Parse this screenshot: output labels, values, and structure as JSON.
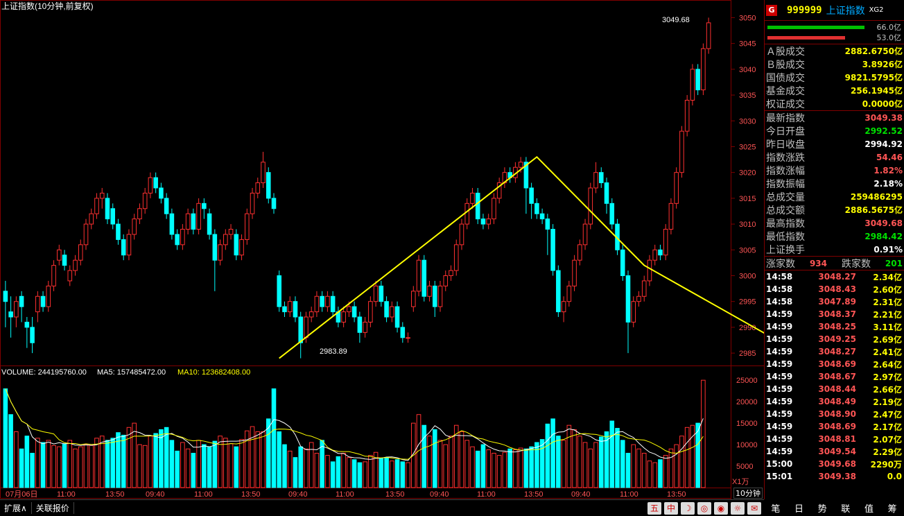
{
  "chart_title": "上证指数(10分钟,前复权)",
  "volume_line": {
    "vol": "VOLUME: 244195760.00",
    "ma5": "MA5: 157485472.00",
    "ma10": "MA10: 123682408.00"
  },
  "annotations": {
    "high": "3049.68",
    "low": "2983.89"
  },
  "y_ticks": [
    "3050",
    "3045",
    "3040",
    "3035",
    "3030",
    "3025",
    "3020",
    "3015",
    "3010",
    "3005",
    "3000",
    "2995",
    "2990",
    "2985"
  ],
  "vol_ticks": [
    "25000",
    "20000",
    "15000",
    "10000",
    "5000"
  ],
  "vol_unit": "X1万",
  "x_ticks": [
    "07月06日",
    "11:00",
    "13:50",
    "09:40",
    "11:00",
    "13:50",
    "09:40",
    "11:00",
    "13:50",
    "09:40",
    "11:00",
    "13:50",
    "09:40",
    "11:00",
    "13:50"
  ],
  "period_button": "10分钟",
  "bottom": {
    "expand": "扩展∧",
    "related": "关联报价",
    "icons": [
      "五",
      "中",
      "☽",
      "◎",
      "◉",
      "☼",
      "✉"
    ]
  },
  "right_tabs": [
    "笔",
    "日",
    "势",
    "联",
    "值",
    "筹"
  ],
  "quote": {
    "badge": "G",
    "code": "999999",
    "name": "上证指数",
    "tag": "XG2",
    "bar_labels": [
      "66.0亿",
      "53.0亿"
    ],
    "rows1": [
      {
        "k": "Ａ股成交",
        "v": "2882.6750亿"
      },
      {
        "k": "Ｂ股成交",
        "v": "3.8926亿"
      },
      {
        "k": "国债成交",
        "v": "9821.5795亿"
      },
      {
        "k": "基金成交",
        "v": "256.1945亿"
      },
      {
        "k": "权证成交",
        "v": "0.0000亿"
      }
    ],
    "rows2": [
      {
        "k": "最新指数",
        "v": "3049.38",
        "c": "#ff5555"
      },
      {
        "k": "今日开盘",
        "v": "2992.52",
        "c": "#00e000"
      },
      {
        "k": "昨日收盘",
        "v": "2994.92",
        "c": "#ffffff"
      },
      {
        "k": "指数涨跌",
        "v": "54.46",
        "c": "#ff5555"
      },
      {
        "k": "指数涨幅",
        "v": "1.82%",
        "c": "#ff5555"
      },
      {
        "k": "指数振幅",
        "v": "2.18%",
        "c": "#ffffff"
      },
      {
        "k": "总成交量",
        "v": "259486295",
        "c": "#ffff00"
      },
      {
        "k": "总成交额",
        "v": "2886.5675亿",
        "c": "#ffff00"
      },
      {
        "k": "最高指数",
        "v": "3049.68",
        "c": "#ff5555"
      },
      {
        "k": "最低指数",
        "v": "2984.42",
        "c": "#00e000"
      },
      {
        "k": "上证换手",
        "v": "0.91%",
        "c": "#ffffff"
      }
    ],
    "updown": {
      "up_label": "涨家数",
      "up": "934",
      "down_label": "跌家数",
      "down": "201"
    },
    "ticks": [
      [
        "14:58",
        "3048.27",
        "2.34亿"
      ],
      [
        "14:58",
        "3048.43",
        "2.60亿"
      ],
      [
        "14:58",
        "3047.89",
        "2.31亿"
      ],
      [
        "14:59",
        "3048.37",
        "2.21亿"
      ],
      [
        "14:59",
        "3048.25",
        "3.11亿"
      ],
      [
        "14:59",
        "3049.25",
        "2.69亿"
      ],
      [
        "14:59",
        "3048.27",
        "2.41亿"
      ],
      [
        "14:59",
        "3048.69",
        "2.64亿"
      ],
      [
        "14:59",
        "3048.67",
        "2.97亿"
      ],
      [
        "14:59",
        "3048.44",
        "2.66亿"
      ],
      [
        "14:59",
        "3048.49",
        "2.19亿"
      ],
      [
        "14:59",
        "3048.90",
        "2.47亿"
      ],
      [
        "14:59",
        "3048.69",
        "2.17亿"
      ],
      [
        "14:59",
        "3048.81",
        "2.07亿"
      ],
      [
        "14:59",
        "3049.54",
        "2.29亿"
      ],
      [
        "15:00",
        "3049.68",
        "2290万"
      ],
      [
        "15:01",
        "3049.38",
        "0.0"
      ]
    ]
  },
  "chart_data": {
    "type": "candlestick",
    "ylim": [
      2983,
      3051
    ],
    "volume_ylim": [
      0,
      26000
    ],
    "candles": [
      [
        2997,
        2995,
        2999,
        2990
      ],
      [
        2993,
        2992,
        2996,
        2988
      ],
      [
        2992,
        2995,
        2996,
        2990
      ],
      [
        2996,
        2994,
        2997,
        2991
      ],
      [
        2991,
        2990,
        2992,
        2986
      ],
      [
        2990,
        2987,
        2992,
        2985
      ],
      [
        2993,
        2996,
        2997,
        2991
      ],
      [
        2996,
        2994,
        2997,
        2993
      ],
      [
        2994,
        2998,
        2999,
        2993
      ],
      [
        2998,
        3002,
        3003,
        2997
      ],
      [
        3003,
        3005,
        3006,
        3002
      ],
      [
        3004,
        3002,
        3005,
        3001
      ],
      [
        2999,
        3001,
        3002,
        2998
      ],
      [
        3001,
        3003,
        3004,
        3000
      ],
      [
        3003,
        3006,
        3007,
        3002
      ],
      [
        3006,
        3010,
        3011,
        3005
      ],
      [
        3010,
        3012,
        3013,
        3009
      ],
      [
        3012,
        3015,
        3016,
        3011
      ],
      [
        3015,
        3016,
        3017,
        3013
      ],
      [
        3015,
        3011,
        3016,
        3010
      ],
      [
        3013,
        3010,
        3014,
        3009
      ],
      [
        3010,
        3007,
        3011,
        3006
      ],
      [
        3007,
        3004,
        3008,
        3003
      ],
      [
        3004,
        3008,
        3009,
        3003
      ],
      [
        3008,
        3011,
        3012,
        3007
      ],
      [
        3011,
        3013,
        3014,
        3010
      ],
      [
        3013,
        3016,
        3017,
        3012
      ],
      [
        3016,
        3019,
        3020,
        3015
      ],
      [
        3019,
        3017,
        3020,
        3016
      ],
      [
        3017,
        3015,
        3018,
        3014
      ],
      [
        3015,
        3012,
        3016,
        3011
      ],
      [
        3012,
        3008,
        3013,
        3007
      ],
      [
        3008,
        3006,
        3009,
        3005
      ],
      [
        3006,
        3009,
        3010,
        3005
      ],
      [
        3009,
        3012,
        3013,
        3008
      ],
      [
        3012,
        3009,
        3013,
        3008
      ],
      [
        3009,
        3014,
        3015,
        3008
      ],
      [
        3014,
        3013,
        3015,
        3011
      ],
      [
        3012,
        3008,
        3013,
        3007
      ],
      [
        3008,
        3003,
        3009,
        2997
      ],
      [
        3003,
        3006,
        3007,
        3002
      ],
      [
        3006,
        3008,
        3009,
        3005
      ],
      [
        3008,
        3009,
        3010,
        3007
      ],
      [
        3008,
        3004,
        3009,
        3003
      ],
      [
        3004,
        3007,
        3008,
        3003
      ],
      [
        3007,
        3012,
        3013,
        3006
      ],
      [
        3012,
        3016,
        3017,
        3011
      ],
      [
        3016,
        3018,
        3019,
        3015
      ],
      [
        3018,
        3022,
        3024,
        3017
      ],
      [
        3020,
        3015,
        3021,
        3014
      ],
      [
        3015,
        3013,
        3016,
        3012
      ],
      [
        3000,
        2994,
        3001,
        2993
      ],
      [
        2994,
        2993,
        2995,
        2992
      ],
      [
        2993,
        2995,
        2996,
        2992
      ],
      [
        2995,
        2992,
        2996,
        2991
      ],
      [
        2992,
        2987,
        2993,
        2984
      ],
      [
        2988,
        2992,
        2993,
        2987
      ],
      [
        2992,
        2993,
        2994,
        2991
      ],
      [
        2993,
        2996,
        2997,
        2992
      ],
      [
        2996,
        2994,
        2997,
        2993
      ],
      [
        2994,
        2996,
        2997,
        2993
      ],
      [
        2996,
        2993,
        2997,
        2992
      ],
      [
        2993,
        2991,
        2994,
        2990
      ],
      [
        2991,
        2993,
        2994,
        2990
      ],
      [
        2993,
        2994,
        2995,
        2992
      ],
      [
        2994,
        2992,
        2995,
        2991
      ],
      [
        2992,
        2989,
        2993,
        2987
      ],
      [
        2989,
        2991,
        2992,
        2988
      ],
      [
        2991,
        2995,
        2996,
        2990
      ],
      [
        2995,
        2998,
        2999,
        2994
      ],
      [
        2998,
        2995,
        2999,
        2994
      ],
      [
        2995,
        2992,
        2996,
        2991
      ],
      [
        2992,
        2994,
        2995,
        2991
      ],
      [
        2994,
        2990,
        2995,
        2989
      ],
      [
        2990,
        2988,
        2991,
        2987
      ],
      [
        2988,
        2988,
        2989,
        2987
      ],
      [
        2994,
        2997,
        2998,
        2993
      ],
      [
        2997,
        3003,
        3004,
        2996
      ],
      [
        3003,
        2996,
        3004,
        2995
      ],
      [
        2996,
        2998,
        2999,
        2995
      ],
      [
        2998,
        2994,
        2999,
        2992
      ],
      [
        2994,
        2998,
        2999,
        2993
      ],
      [
        2998,
        3000,
        3001,
        2997
      ],
      [
        3000,
        3001,
        3002,
        2999
      ],
      [
        3001,
        3006,
        3007,
        3000
      ],
      [
        3006,
        3010,
        3011,
        3005
      ],
      [
        3010,
        3014,
        3015,
        3009
      ],
      [
        3014,
        3016,
        3017,
        3013
      ],
      [
        3016,
        3011,
        3017,
        3010
      ],
      [
        3011,
        3010,
        3012,
        3009
      ],
      [
        3010,
        3011,
        3012,
        3009
      ],
      [
        3011,
        3015,
        3016,
        3010
      ],
      [
        3015,
        3018,
        3019,
        3014
      ],
      [
        3018,
        3020,
        3021,
        3017
      ],
      [
        3020,
        3019,
        3021,
        3018
      ],
      [
        3019,
        3021,
        3022,
        3018
      ],
      [
        3021,
        3022,
        3023,
        3020
      ],
      [
        3022,
        3017,
        3023,
        3012
      ],
      [
        3017,
        3014,
        3018,
        3011
      ],
      [
        3014,
        3012,
        3015,
        3011
      ],
      [
        3012,
        3011,
        3013,
        3010
      ],
      [
        3011,
        3009,
        3012,
        3004
      ],
      [
        3009,
        3001,
        3010,
        3000
      ],
      [
        3001,
        2993,
        3002,
        2992
      ],
      [
        2993,
        2995,
        2996,
        2991
      ],
      [
        2995,
        2998,
        2999,
        2994
      ],
      [
        2998,
        3003,
        3004,
        2997
      ],
      [
        3003,
        3006,
        3007,
        3002
      ],
      [
        3006,
        3010,
        3011,
        3005
      ],
      [
        3010,
        3017,
        3018,
        3009
      ],
      [
        3017,
        3020,
        3022,
        3016
      ],
      [
        3020,
        3018,
        3021,
        3017
      ],
      [
        3018,
        3014,
        3019,
        3012
      ],
      [
        3014,
        3010,
        3015,
        3009
      ],
      [
        3010,
        3005,
        3011,
        3004
      ],
      [
        3005,
        3000,
        3006,
        2999
      ],
      [
        3000,
        2991,
        3001,
        2985
      ],
      [
        2991,
        2995,
        2996,
        2990
      ],
      [
        2995,
        2996,
        2997,
        2994
      ],
      [
        2996,
        2999,
        3000,
        2995
      ],
      [
        2999,
        3003,
        3004,
        2998
      ],
      [
        3003,
        3005,
        3006,
        3002
      ],
      [
        3005,
        3004,
        3006,
        3003
      ],
      [
        3004,
        3009,
        3010,
        3003
      ],
      [
        3009,
        3014,
        3015,
        3008
      ],
      [
        3014,
        3020,
        3021,
        3013
      ],
      [
        3020,
        3028,
        3029,
        3019
      ],
      [
        3028,
        3034,
        3035,
        3027
      ],
      [
        3034,
        3040,
        3041,
        3033
      ],
      [
        3040,
        3036,
        3041,
        3035
      ],
      [
        3036,
        3044,
        3045,
        3035
      ],
      [
        3044,
        3049,
        3050,
        3043
      ]
    ],
    "volumes": [
      23000,
      17000,
      13000,
      9000,
      12000,
      8000,
      11500,
      10500,
      11000,
      9800,
      9500,
      10200,
      11000,
      9000,
      9500,
      10000,
      9800,
      11500,
      12000,
      11000,
      11500,
      12800,
      12200,
      14000,
      15000,
      10000,
      9800,
      12000,
      12600,
      13500,
      14000,
      11000,
      8500,
      10500,
      9000,
      8000,
      11000,
      10000,
      9500,
      10800,
      12000,
      11500,
      10200,
      9500,
      11200,
      13200,
      14200,
      13000,
      13000,
      16000,
      23000,
      13000,
      10000,
      8500,
      7000,
      9500,
      9000,
      10500,
      8000,
      11000,
      7500,
      6000,
      7200,
      8000,
      7000,
      6500,
      5800,
      6000,
      7500,
      8200,
      6800,
      7000,
      6200,
      6500,
      6000,
      5800,
      15000,
      17000,
      14500,
      12000,
      13500,
      11000,
      10000,
      12000,
      14500,
      13000,
      11000,
      9500,
      8500,
      10000,
      8800,
      8000,
      7500,
      8200,
      9000,
      8800,
      9200,
      9000,
      9500,
      10500,
      11200,
      14800,
      16000,
      12000,
      11000,
      14500,
      13500,
      12000,
      10500,
      9000,
      10500,
      11800,
      13000,
      15500,
      13800,
      11000,
      8000,
      10000,
      9000,
      8000,
      6200,
      5800,
      6500,
      7500,
      9000,
      10000,
      12000,
      14000,
      14500,
      15000,
      25000
    ]
  }
}
